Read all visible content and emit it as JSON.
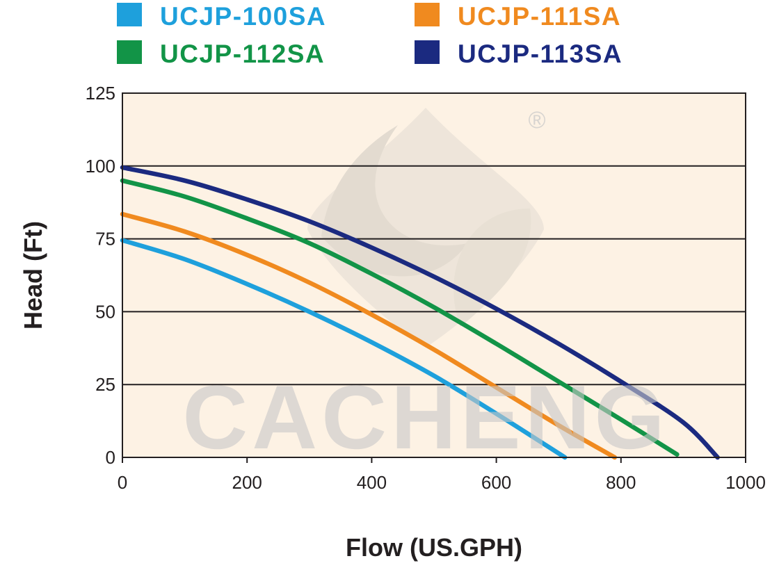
{
  "chart_data": {
    "type": "line",
    "xlabel": "Flow (US.GPH)",
    "ylabel": "Head (Ft)",
    "xlim": [
      0,
      1000
    ],
    "ylim": [
      0,
      125
    ],
    "x_ticks": [
      0,
      200,
      400,
      600,
      800,
      1000
    ],
    "y_ticks": [
      0,
      25,
      50,
      75,
      100,
      125
    ],
    "grid": "horizontal",
    "legend_position": "top",
    "plot_background": "#fdf2e4",
    "watermark": {
      "text": "CACHENG",
      "mark": "®",
      "color": "#c8c8c8"
    },
    "series": [
      {
        "name": "UCJP-100SA",
        "color": "#1ea0dc",
        "points": [
          [
            0,
            74.5
          ],
          [
            100,
            68
          ],
          [
            200,
            59.5
          ],
          [
            300,
            50
          ],
          [
            400,
            39.5
          ],
          [
            500,
            28
          ],
          [
            600,
            15
          ],
          [
            710,
            0
          ]
        ]
      },
      {
        "name": "UCJP-111SA",
        "color": "#f08a1f",
        "points": [
          [
            0,
            83.5
          ],
          [
            100,
            77.5
          ],
          [
            200,
            69.5
          ],
          [
            300,
            60
          ],
          [
            400,
            49
          ],
          [
            500,
            37
          ],
          [
            600,
            24
          ],
          [
            700,
            11
          ],
          [
            790,
            0
          ]
        ]
      },
      {
        "name": "UCJP-112SA",
        "color": "#129447",
        "points": [
          [
            0,
            95
          ],
          [
            100,
            89.5
          ],
          [
            200,
            82
          ],
          [
            300,
            73.5
          ],
          [
            400,
            63
          ],
          [
            500,
            51.5
          ],
          [
            600,
            39
          ],
          [
            700,
            26
          ],
          [
            800,
            13
          ],
          [
            890,
            1
          ]
        ]
      },
      {
        "name": "UCJP-113SA",
        "color": "#1b2a80",
        "points": [
          [
            0,
            99.5
          ],
          [
            100,
            95
          ],
          [
            200,
            88.5
          ],
          [
            300,
            81
          ],
          [
            400,
            72
          ],
          [
            500,
            62
          ],
          [
            600,
            51
          ],
          [
            700,
            39
          ],
          [
            800,
            26
          ],
          [
            900,
            12
          ],
          [
            955,
            0
          ]
        ]
      }
    ]
  }
}
